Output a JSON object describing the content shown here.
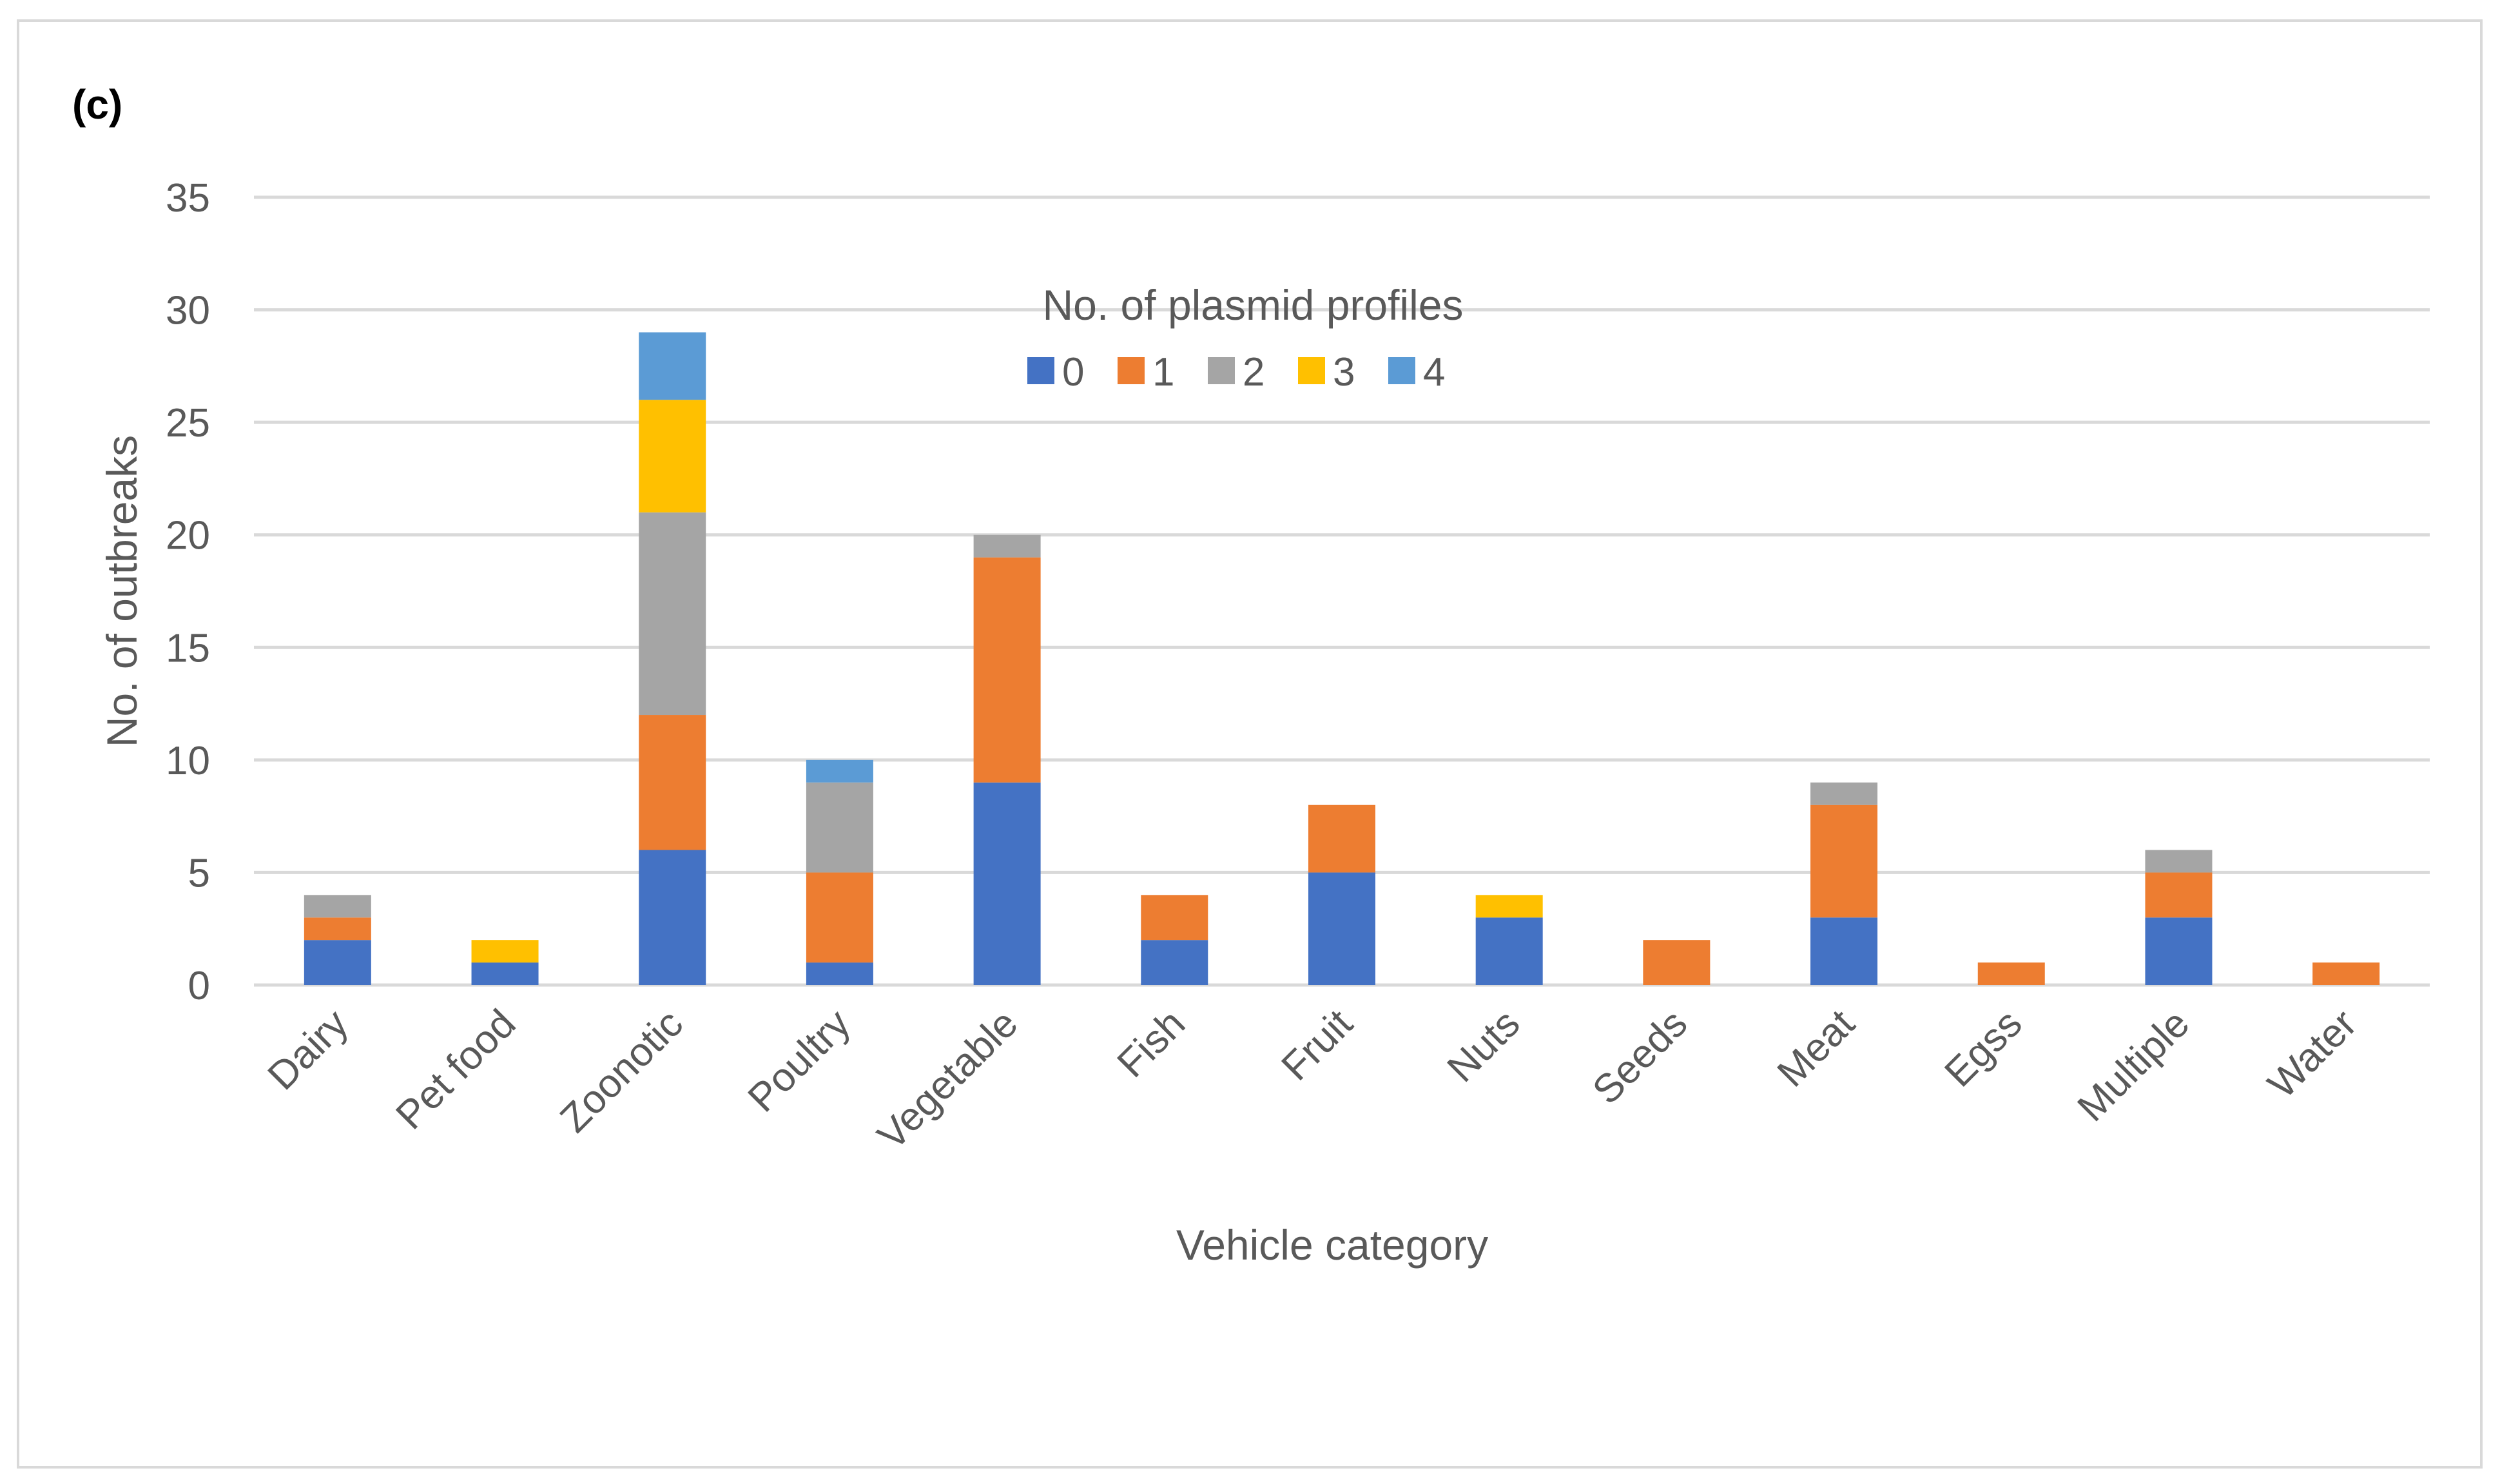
{
  "panel_label": "(c)",
  "colors": {
    "series": [
      "#4472C4",
      "#ED7D31",
      "#A5A5A5",
      "#FFC000",
      "#5B9BD5"
    ],
    "gridline": "#d9d9d9",
    "text": "#595959",
    "frame": "#d9d9d9"
  },
  "chart_data": {
    "type": "bar",
    "stacked": true,
    "title": "",
    "xlabel": "Vehicle category",
    "ylabel": "No. of outbreaks",
    "ylim": [
      0,
      35
    ],
    "yticks": [
      0,
      5,
      10,
      15,
      20,
      25,
      30,
      35
    ],
    "grid": true,
    "legend_title": "No. of plasmid profiles",
    "legend_position": "top-center (inside plot)",
    "categories": [
      "Dairy",
      "Pet food",
      "Zoonotic",
      "Poultry",
      "Vegetable",
      "Fish",
      "Fruit",
      "Nuts",
      "Seeds",
      "Meat",
      "Egss",
      "Multiple",
      "Water"
    ],
    "series": [
      {
        "name": "0",
        "values": [
          2,
          1,
          6,
          1,
          9,
          2,
          5,
          3,
          0,
          3,
          0,
          3,
          0
        ]
      },
      {
        "name": "1",
        "values": [
          1,
          0,
          6,
          4,
          10,
          2,
          3,
          0,
          2,
          5,
          1,
          2,
          1
        ]
      },
      {
        "name": "2",
        "values": [
          1,
          0,
          9,
          4,
          1,
          0,
          0,
          0,
          0,
          1,
          0,
          1,
          0
        ]
      },
      {
        "name": "3",
        "values": [
          0,
          1,
          5,
          0,
          0,
          0,
          0,
          1,
          0,
          0,
          0,
          0,
          0
        ]
      },
      {
        "name": "4",
        "values": [
          0,
          0,
          3,
          1,
          0,
          0,
          0,
          0,
          0,
          0,
          0,
          0,
          0
        ]
      }
    ]
  }
}
